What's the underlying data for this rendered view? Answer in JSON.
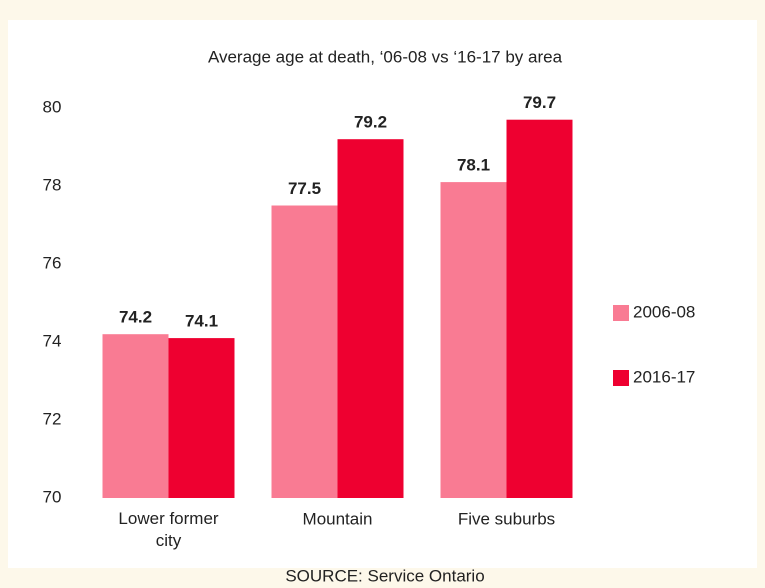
{
  "chart_data": {
    "type": "bar",
    "title": "Average age at death, ‘06-08 vs ‘16-17 by area",
    "source": "SOURCE:  Service Ontario",
    "categories": [
      "Lower former city",
      "Mountain",
      "Five suburbs"
    ],
    "series": [
      {
        "name": "2006-08",
        "color": "#f97b93",
        "values": [
          74.2,
          77.5,
          78.1
        ]
      },
      {
        "name": "2016-17",
        "color": "#ee0030",
        "values": [
          74.1,
          79.2,
          79.7
        ]
      }
    ],
    "ylim": [
      70,
      80
    ],
    "yticks": [
      70,
      72,
      74,
      76,
      78,
      80
    ],
    "grid": false,
    "legend": "right"
  }
}
